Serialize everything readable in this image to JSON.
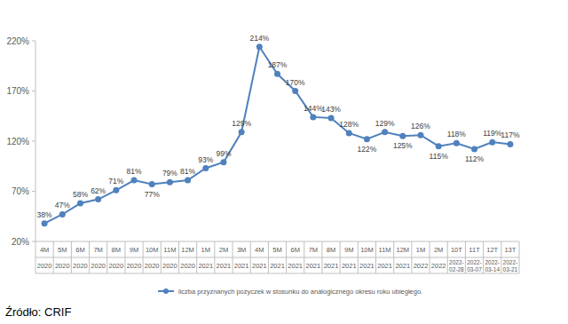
{
  "chart_data": {
    "type": "line",
    "categories": [
      "4M",
      "5M",
      "6M",
      "7M",
      "8M",
      "9M",
      "10M",
      "11M",
      "12M",
      "1M",
      "2M",
      "3M",
      "4M",
      "5M",
      "6M",
      "7M",
      "8M",
      "9M",
      "10M",
      "11M",
      "12M",
      "1M",
      "2M",
      "10T",
      "11T",
      "12T",
      "13T"
    ],
    "periods": [
      "2020",
      "2020",
      "2020",
      "2020",
      "2020",
      "2020",
      "2020",
      "2020",
      "2020",
      "2021",
      "2021",
      "2021",
      "2021",
      "2021",
      "2021",
      "2021",
      "2021",
      "2021",
      "2021",
      "2021",
      "2021",
      "2022",
      "2022",
      "2022-02-28",
      "2022-03-07",
      "2022-03-14",
      "2022-03-21"
    ],
    "series": [
      {
        "name": "liczba przyznanych pożyczek w stosunku do analogicznego okresu roku ubiegłego.",
        "color": "#4f81bd",
        "marker": "circle",
        "values": [
          38,
          47,
          58,
          62,
          71,
          81,
          77,
          79,
          81,
          93,
          99,
          129,
          214,
          187,
          170,
          144,
          143,
          128,
          122,
          129,
          125,
          126,
          115,
          118,
          112,
          119,
          117
        ],
        "value_labels": [
          "38%",
          "47%",
          "58%",
          "62%",
          "71%",
          "81%",
          "77%",
          "79%",
          "81%",
          "93%",
          "99%",
          "129%",
          "214%",
          "187%",
          "170%",
          "144%",
          "143%",
          "128%",
          "122%",
          "129%",
          "125%",
          "126%",
          "115%",
          "118%",
          "112%",
          "119%",
          "117%"
        ]
      }
    ],
    "ylim": [
      20,
      220
    ],
    "yticks": [
      {
        "value": 20,
        "label": "20%"
      },
      {
        "value": 70,
        "label": "70%"
      },
      {
        "value": 120,
        "label": "120%"
      },
      {
        "value": 170,
        "label": "170%"
      },
      {
        "value": 220,
        "label": "220%"
      }
    ],
    "grid": false,
    "data_labels": true,
    "legend": "bottom",
    "source": "Źródło: CRIF"
  }
}
